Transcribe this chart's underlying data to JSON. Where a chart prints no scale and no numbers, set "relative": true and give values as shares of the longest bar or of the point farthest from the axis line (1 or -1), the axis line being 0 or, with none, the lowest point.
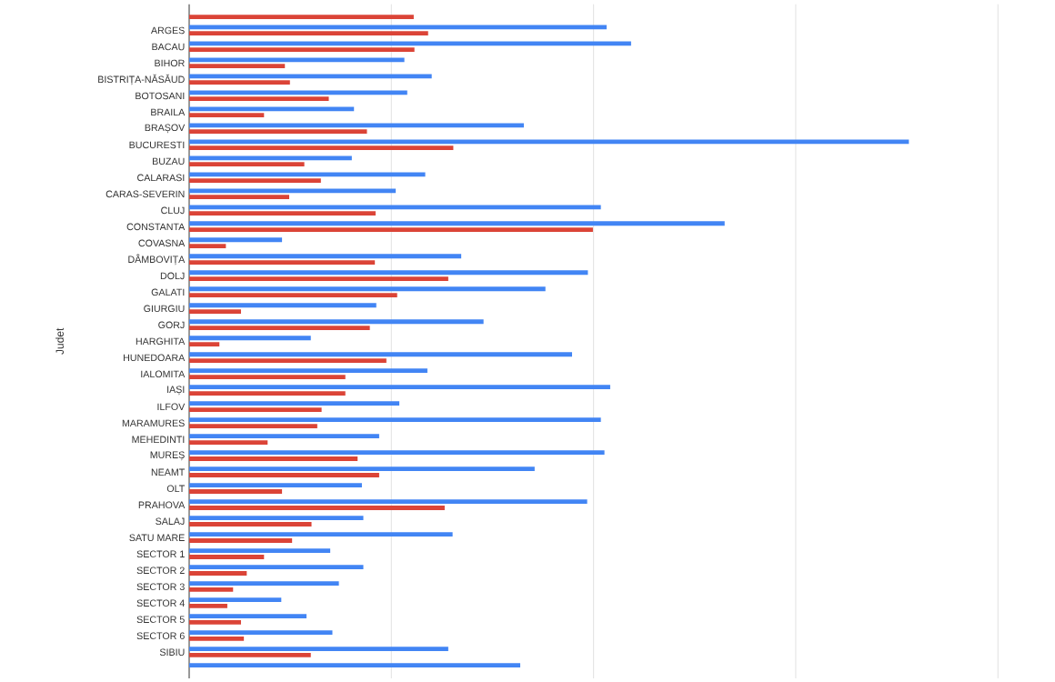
{
  "chart_data": {
    "type": "bar",
    "orientation": "horizontal",
    "relative": true,
    "ylabel": "Judet",
    "grid": "x",
    "tick_labels": "y",
    "categories": [
      null,
      "ARGES",
      "BACAU",
      "BIHOR",
      "BISTRIȚA-NĂSĂUD",
      "BOTOSANI",
      "BRAILA",
      "BRAȘOV",
      "BUCURESTI",
      "BUZAU",
      "CALARASI",
      "CARAS-SEVERIN",
      "CLUJ",
      "CONSTANTA",
      "COVASNA",
      "DÂMBOVIȚA",
      "DOLJ",
      "GALATI",
      "GIURGIU",
      "GORJ",
      "HARGHITA",
      "HUNEDOARA",
      "IALOMITA",
      "IAȘI",
      "ILFOV",
      "MARAMURES",
      "MEHEDINTI",
      "MUREȘ",
      "NEAMT",
      "OLT",
      "PRAHOVA",
      "SALAJ",
      "SATU MARE",
      "SECTOR 1",
      "SECTOR 2",
      "SECTOR 3",
      "SECTOR 4",
      "SECTOR 5",
      "SECTOR 6",
      "SIBIU",
      null
    ],
    "series": [
      {
        "color": "#4285f4",
        "values": [
          null,
          0.58,
          0.614,
          0.299,
          0.337,
          0.303,
          0.229,
          0.465,
          1,
          0.226,
          0.328,
          0.287,
          0.572,
          0.744,
          0.129,
          0.378,
          0.554,
          0.495,
          0.26,
          0.409,
          0.169,
          0.532,
          0.331,
          0.585,
          0.292,
          0.572,
          0.264,
          0.577,
          0.48,
          0.24,
          0.553,
          0.242,
          0.366,
          0.196,
          0.242,
          0.208,
          0.128,
          0.163,
          0.199,
          0.36,
          0.46
        ]
      },
      {
        "color": "#db4437",
        "values": [
          0.312,
          0.332,
          0.313,
          0.133,
          0.14,
          0.194,
          0.104,
          0.247,
          0.367,
          0.16,
          0.183,
          0.139,
          0.259,
          0.561,
          0.051,
          0.258,
          0.36,
          0.289,
          0.072,
          0.251,
          0.042,
          0.274,
          0.217,
          0.217,
          0.184,
          0.178,
          0.109,
          0.234,
          0.264,
          0.129,
          0.355,
          0.17,
          0.143,
          0.104,
          0.08,
          0.061,
          0.053,
          0.072,
          0.076,
          0.169,
          null
        ]
      }
    ]
  }
}
